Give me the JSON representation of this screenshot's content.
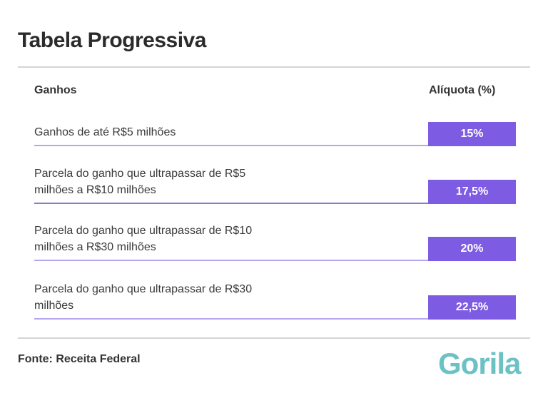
{
  "title": "Tabela Progressiva",
  "table": {
    "headers": [
      "Ganhos",
      "Alíquota (%)"
    ],
    "rows": [
      {
        "ganhos": "Ganhos de até R$5 milhões",
        "aliquota": "15%"
      },
      {
        "ganhos": "Parcela do ganho que ultrapassar de R$5 milhões a R$10 milhões",
        "aliquota": "17,5%"
      },
      {
        "ganhos": "Parcela do ganho que ultrapassar de R$10 milhões a R$30 milhões",
        "aliquota": "20%"
      },
      {
        "ganhos": "Parcela do ganho que ultrapassar de R$30 milhões",
        "aliquota": "22,5%"
      }
    ]
  },
  "source": "Fonte: Receita Federal",
  "logo": "Gorila",
  "colors": {
    "accent": "#7e5be3",
    "logo": "#6cc1c4"
  }
}
